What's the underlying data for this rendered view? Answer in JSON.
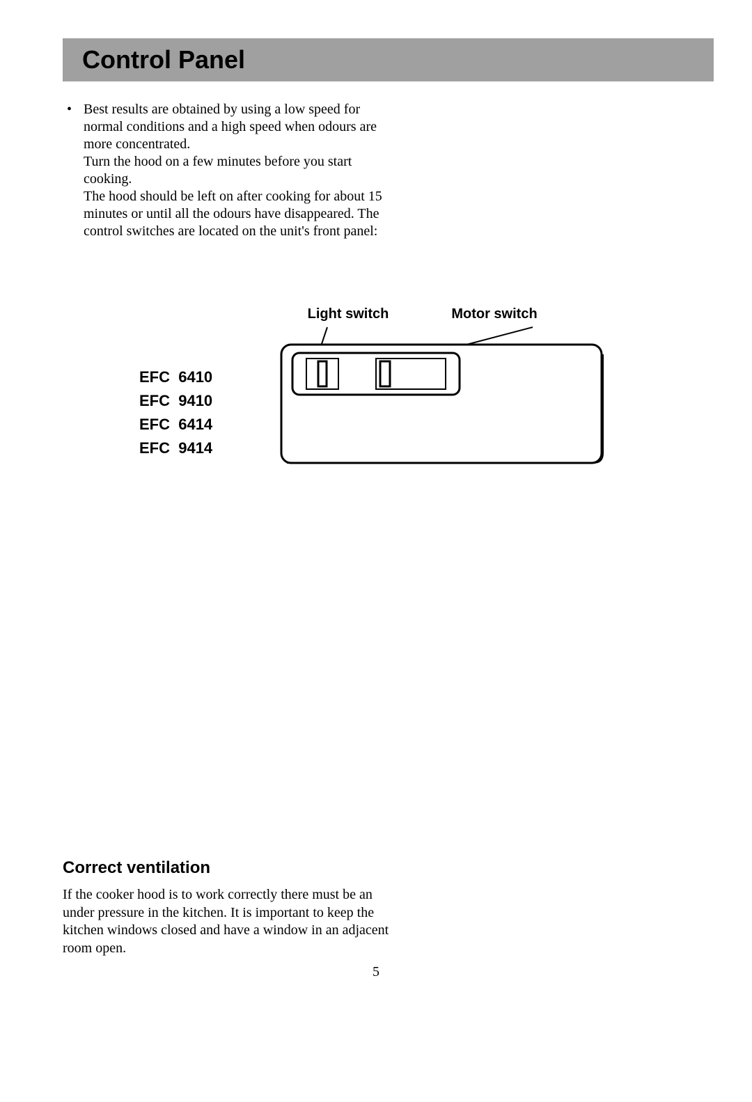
{
  "header": {
    "title": "Control Panel"
  },
  "bullet": {
    "text": "Best results are obtained by using a low speed for normal conditions and a high speed when odours are more concentrated.\nTurn the hood on a few minutes before you start cooking.\nThe hood should be left on after cooking for about 15 minutes or until all the odours have disappeared.  The control switches are located on the unit's front panel:"
  },
  "diagram": {
    "light_label": "Light switch",
    "motor_label": "Motor switch",
    "models": "EFC  6410\nEFC  9410\nEFC  6414\nEFC  9414",
    "colors": {
      "stroke": "#000000",
      "fill_bg": "#ffffff",
      "panel_stroke_width": 3,
      "inner_stroke_width": 2
    }
  },
  "ventilation": {
    "heading": "Correct  ventilation",
    "body": "If the cooker hood is to work correctly there must be an under pressure in the kitchen. It is important to keep the kitchen windows closed and have a window in an adjacent room open."
  },
  "page_number": "5"
}
